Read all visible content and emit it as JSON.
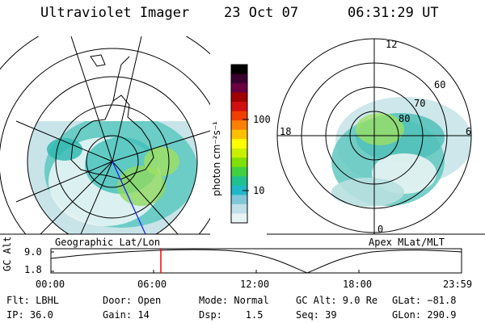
{
  "header": {
    "title": "Ultraviolet Imager",
    "date": "23 Oct 07",
    "time": "06:31:29 UT"
  },
  "left_map": {
    "label": "Geographic Lat/Lon"
  },
  "right_map": {
    "label": "Apex MLat/MLT",
    "mlt_labels": [
      "12",
      "18",
      "6",
      "0"
    ],
    "lat_labels": [
      "60",
      "70",
      "80"
    ]
  },
  "colorbar": {
    "label": "photon cm⁻²s⁻¹",
    "ticks": [
      "100",
      "10"
    ],
    "colors": [
      "#000000",
      "#3a0030",
      "#6a0040",
      "#a00000",
      "#d01010",
      "#f04000",
      "#ff8000",
      "#ffc000",
      "#ffff00",
      "#c8f000",
      "#80e000",
      "#40d040",
      "#20c090",
      "#20b8c8",
      "#80c8d8",
      "#c0e0e8",
      "#e8f4f4"
    ]
  },
  "timeline": {
    "ylabel": "GC Alt",
    "y_ticks": [
      "9.0",
      "1.8"
    ],
    "x_ticks": [
      "00:00",
      "06:00",
      "12:00",
      "18:00",
      "23:59"
    ],
    "marker_color": "#ff0000"
  },
  "info": {
    "row1": [
      "Flt: LBHL",
      "Door: Open",
      "Mode: Normal",
      "GC Alt: 9.0 Re",
      "GLat: −81.8"
    ],
    "row2": [
      "IP: 36.0",
      "Gain: 14",
      "Dsp:    1.5",
      "Seq: 39",
      "GLon: 290.9"
    ]
  }
}
